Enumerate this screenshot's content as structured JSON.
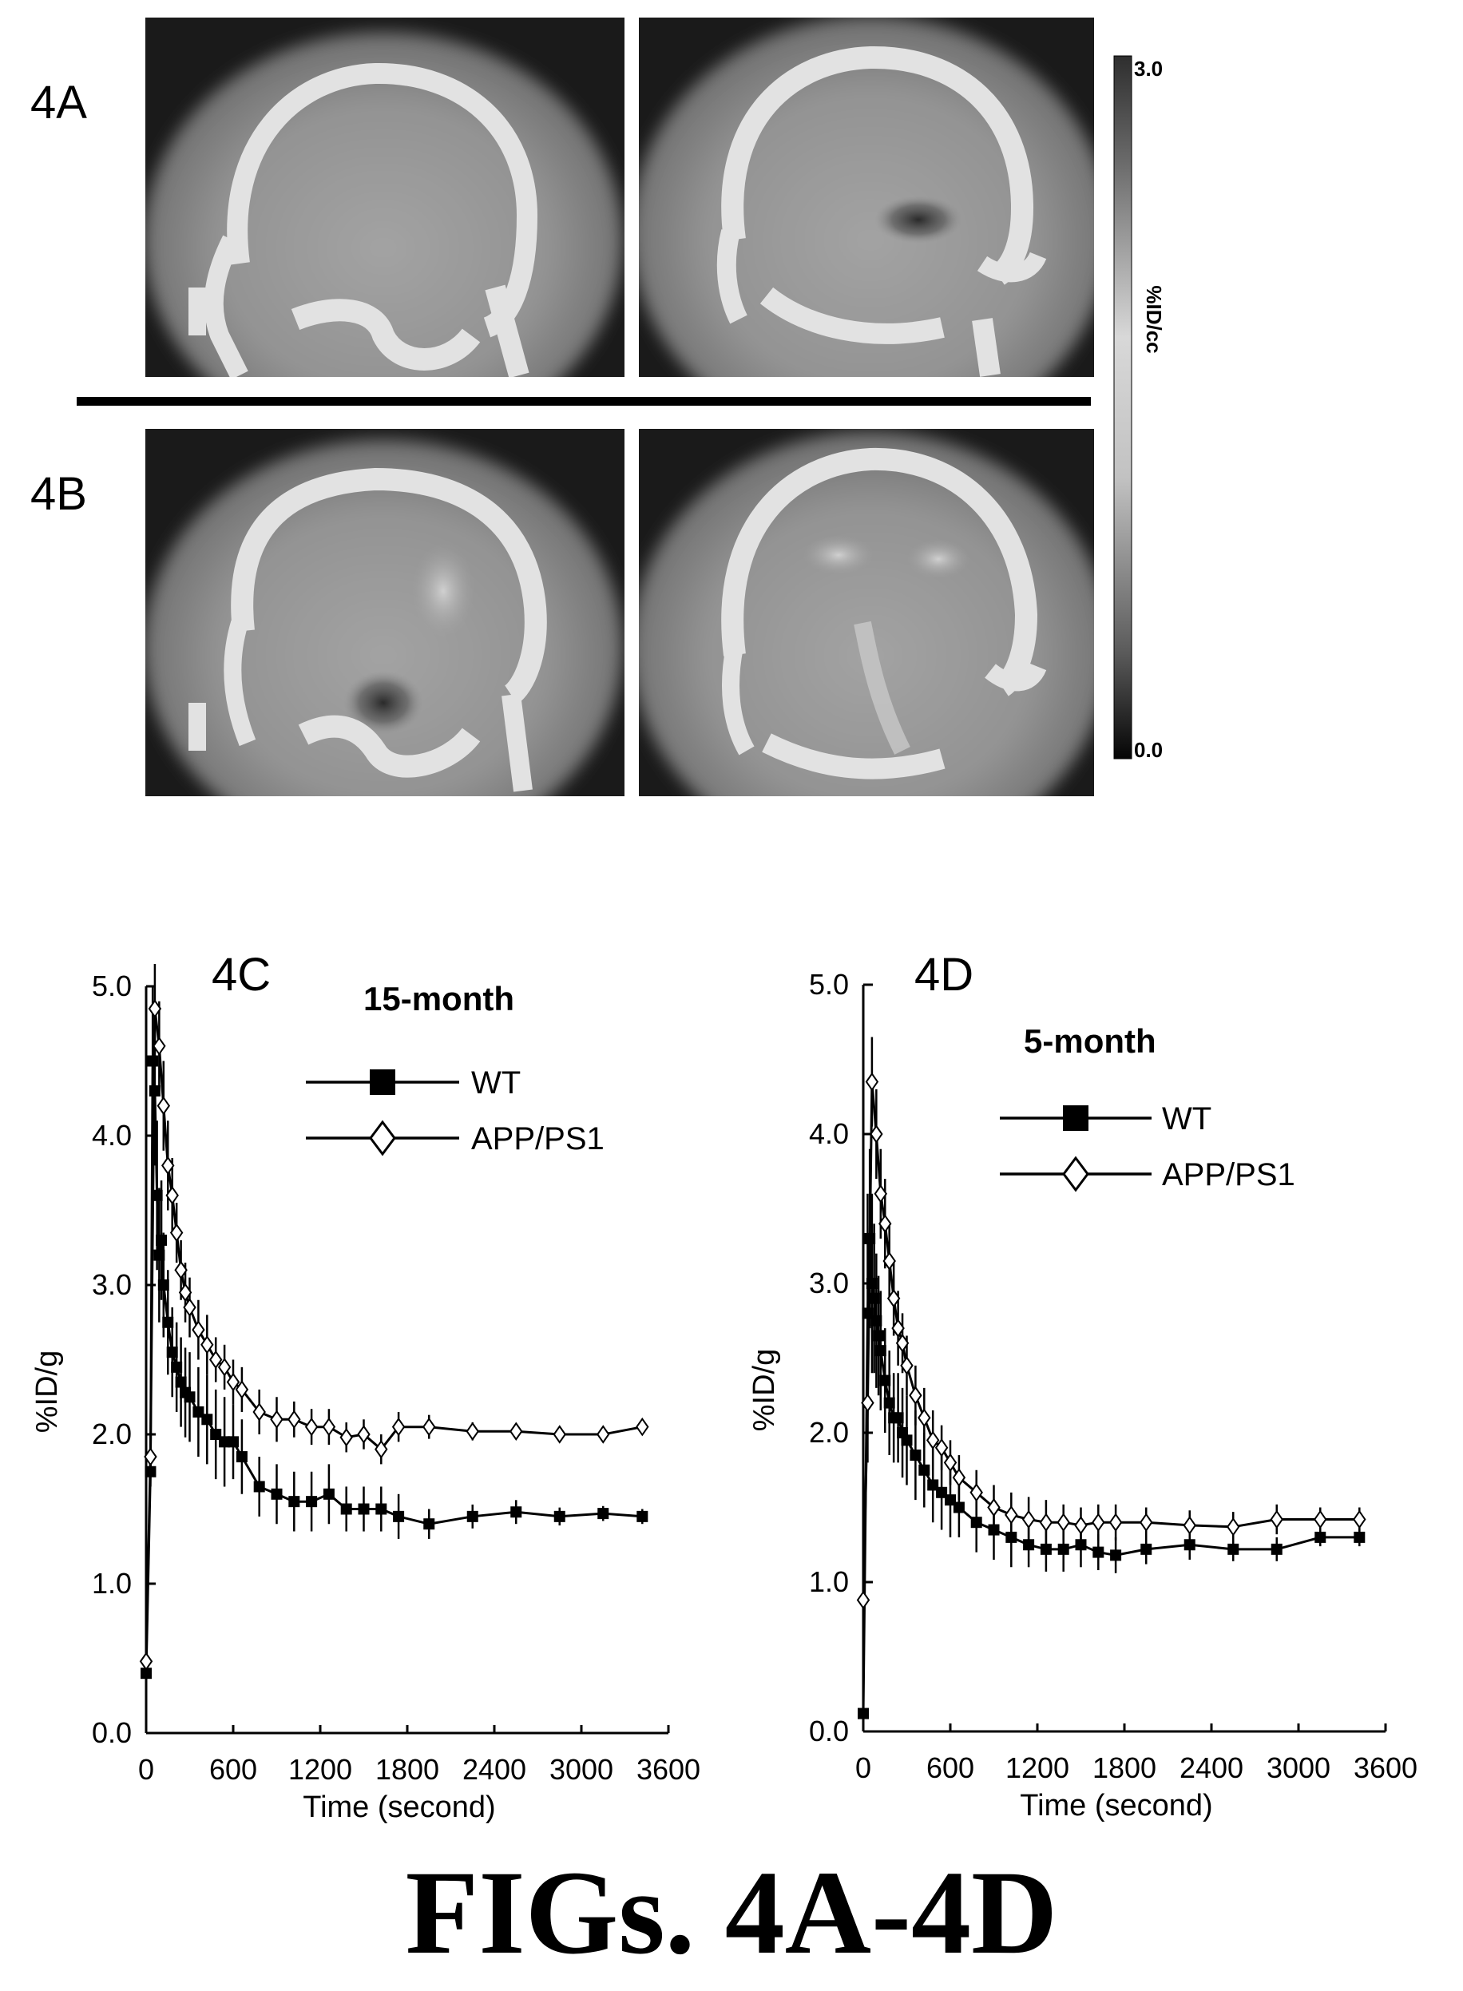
{
  "figure": {
    "caption": "FIGs. 4A-4D",
    "panels": {
      "a": "4A",
      "b": "4B"
    }
  },
  "colorbar": {
    "max_label": "3.0",
    "min_label": "0.0",
    "unit_label": "%ID/cc"
  },
  "colors": {
    "ink": "#000000",
    "image_dark": "#1a1a1a",
    "image_gray": "#8e8e8e",
    "skull": "#e2e2e2"
  },
  "chart_data": [
    {
      "type": "line",
      "panel_label": "4C",
      "legend_title": "15-month",
      "xlabel": "Time (second)",
      "ylabel": "%ID/g",
      "xlim": [
        0,
        3600
      ],
      "ylim": [
        0,
        5.0
      ],
      "xticks": [
        "0",
        "600",
        "1200",
        "1800",
        "2400",
        "3000",
        "3600"
      ],
      "yticks": [
        "0.0",
        "1.0",
        "2.0",
        "3.0",
        "4.0",
        "5.0"
      ],
      "series": [
        {
          "name": "WT",
          "marker": "filled-square",
          "x": [
            0,
            30,
            45,
            60,
            75,
            90,
            105,
            120,
            150,
            180,
            210,
            240,
            270,
            300,
            360,
            420,
            480,
            540,
            600,
            660,
            780,
            900,
            1020,
            1140,
            1260,
            1380,
            1500,
            1620,
            1740,
            1950,
            2250,
            2550,
            2850,
            3150,
            3420
          ],
          "y": [
            0.4,
            1.75,
            4.5,
            4.3,
            3.6,
            3.2,
            3.3,
            3.0,
            2.75,
            2.55,
            2.45,
            2.35,
            2.28,
            2.25,
            2.15,
            2.1,
            2.0,
            1.95,
            1.95,
            1.85,
            1.65,
            1.6,
            1.55,
            1.55,
            1.6,
            1.5,
            1.5,
            1.5,
            1.45,
            1.4,
            1.45,
            1.48,
            1.45,
            1.47,
            1.45
          ],
          "err": [
            0.05,
            0.1,
            0.5,
            0.5,
            0.5,
            0.45,
            0.4,
            0.35,
            0.35,
            0.3,
            0.3,
            0.3,
            0.3,
            0.3,
            0.3,
            0.3,
            0.3,
            0.3,
            0.25,
            0.25,
            0.2,
            0.2,
            0.2,
            0.2,
            0.2,
            0.15,
            0.15,
            0.15,
            0.15,
            0.1,
            0.08,
            0.08,
            0.06,
            0.05,
            0.05
          ]
        },
        {
          "name": "APP/PS1",
          "marker": "open-diamond",
          "x": [
            0,
            30,
            60,
            90,
            120,
            150,
            180,
            210,
            240,
            270,
            300,
            360,
            420,
            480,
            540,
            600,
            660,
            780,
            900,
            1020,
            1140,
            1260,
            1380,
            1500,
            1620,
            1740,
            1950,
            2250,
            2550,
            2850,
            3150,
            3420
          ],
          "y": [
            0.48,
            1.85,
            4.85,
            4.6,
            4.2,
            3.8,
            3.6,
            3.35,
            3.1,
            2.95,
            2.85,
            2.7,
            2.6,
            2.5,
            2.45,
            2.35,
            2.3,
            2.15,
            2.1,
            2.1,
            2.05,
            2.05,
            1.98,
            2.0,
            1.9,
            2.05,
            2.05,
            2.02,
            2.02,
            2.0,
            2.0,
            2.05
          ],
          "err": [
            0.05,
            0.1,
            0.3,
            0.3,
            0.3,
            0.3,
            0.25,
            0.2,
            0.2,
            0.2,
            0.2,
            0.2,
            0.2,
            0.15,
            0.15,
            0.15,
            0.15,
            0.15,
            0.15,
            0.12,
            0.12,
            0.12,
            0.1,
            0.1,
            0.1,
            0.1,
            0.08,
            0.06,
            0.05,
            0.05,
            0.05,
            0.05
          ]
        }
      ]
    },
    {
      "type": "line",
      "panel_label": "4D",
      "legend_title": "5-month",
      "xlabel": "Time (second)",
      "ylabel": "%ID/g",
      "xlim": [
        0,
        3600
      ],
      "ylim": [
        0,
        5.0
      ],
      "xticks": [
        "0",
        "600",
        "1200",
        "1800",
        "2400",
        "3000",
        "3600"
      ],
      "yticks": [
        "0.0",
        "1.0",
        "2.0",
        "3.0",
        "4.0",
        "5.0"
      ],
      "series": [
        {
          "name": "WT",
          "marker": "filled-square",
          "x": [
            0,
            30,
            45,
            60,
            75,
            90,
            105,
            120,
            150,
            180,
            210,
            240,
            270,
            300,
            360,
            420,
            480,
            540,
            600,
            660,
            780,
            900,
            1020,
            1140,
            1260,
            1380,
            1500,
            1620,
            1740,
            1950,
            2250,
            2550,
            2850,
            3150,
            3420
          ],
          "y": [
            0.12,
            2.8,
            3.3,
            3.0,
            2.9,
            2.75,
            2.65,
            2.55,
            2.35,
            2.2,
            2.1,
            2.1,
            2.0,
            1.95,
            1.85,
            1.75,
            1.65,
            1.6,
            1.55,
            1.5,
            1.4,
            1.35,
            1.3,
            1.25,
            1.22,
            1.22,
            1.25,
            1.2,
            1.18,
            1.22,
            1.25,
            1.22,
            1.22,
            1.3,
            1.3
          ],
          "err": [
            0.03,
            0.8,
            0.6,
            0.6,
            0.5,
            0.45,
            0.4,
            0.4,
            0.35,
            0.35,
            0.3,
            0.3,
            0.3,
            0.3,
            0.3,
            0.25,
            0.25,
            0.25,
            0.25,
            0.2,
            0.2,
            0.2,
            0.2,
            0.15,
            0.15,
            0.15,
            0.15,
            0.12,
            0.12,
            0.1,
            0.1,
            0.08,
            0.08,
            0.06,
            0.06
          ]
        },
        {
          "name": "APP/PS1",
          "marker": "open-diamond",
          "x": [
            0,
            30,
            60,
            90,
            120,
            150,
            180,
            210,
            240,
            270,
            300,
            360,
            420,
            480,
            540,
            600,
            660,
            780,
            900,
            1020,
            1140,
            1260,
            1380,
            1500,
            1620,
            1740,
            1950,
            2250,
            2550,
            2850,
            3150,
            3420
          ],
          "y": [
            0.88,
            2.2,
            4.35,
            4.0,
            3.6,
            3.4,
            3.15,
            2.9,
            2.7,
            2.6,
            2.45,
            2.25,
            2.1,
            1.95,
            1.9,
            1.8,
            1.7,
            1.6,
            1.5,
            1.45,
            1.42,
            1.4,
            1.4,
            1.38,
            1.4,
            1.4,
            1.4,
            1.38,
            1.37,
            1.42,
            1.42,
            1.42
          ],
          "err": [
            0.05,
            0.4,
            0.3,
            0.3,
            0.3,
            0.3,
            0.25,
            0.25,
            0.25,
            0.2,
            0.2,
            0.2,
            0.2,
            0.2,
            0.15,
            0.15,
            0.15,
            0.15,
            0.15,
            0.15,
            0.15,
            0.15,
            0.12,
            0.12,
            0.12,
            0.12,
            0.1,
            0.1,
            0.1,
            0.1,
            0.08,
            0.08
          ]
        }
      ]
    }
  ]
}
